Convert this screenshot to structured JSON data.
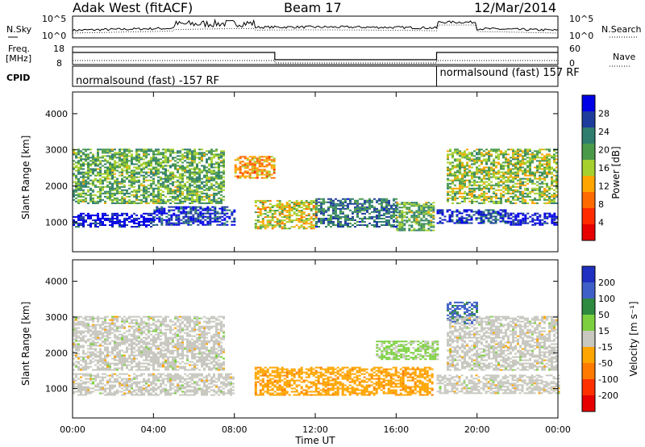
{
  "header": {
    "title": "Adak West (fitACF)",
    "beam": "Beam 17",
    "date": "12/Mar/2014"
  },
  "status_panels": {
    "nsky_label": "N.Sky",
    "nsearch_label": "N.Search",
    "noise_ticks": [
      "10^5",
      "10^0"
    ],
    "freq_label_1": "Freq.",
    "freq_label_2": "[MHz]",
    "freq_ticks": [
      18,
      8
    ],
    "nave_label": "Nave",
    "nave_ticks": [
      60,
      0
    ],
    "cpid_label": "CPID",
    "cpid_left": "normalsound (fast) -157 RF",
    "cpid_right": "normalsound (fast) 157 RF",
    "mode_switch_time_h": 18.0,
    "freq_high_until_h": 10.0
  },
  "axes": {
    "xlabel": "Time UT",
    "xticks": [
      "00:00",
      "04:00",
      "08:00",
      "12:00",
      "16:00",
      "20:00",
      "00:00"
    ],
    "ylabel": "Slant Range [km]",
    "yticks": [
      1000,
      2000,
      3000,
      4000
    ],
    "xlim_hours": [
      0,
      24
    ],
    "ylim_km": [
      180,
      4600
    ]
  },
  "chart_data": [
    {
      "type": "heatmap",
      "panel": "power",
      "colorbar_label": "Power [dB]",
      "colorbar_ticks": [
        4,
        8,
        12,
        16,
        20,
        24,
        28
      ],
      "color_range": [
        0,
        30
      ],
      "colors": [
        "#0000e6",
        "#1e3c9c",
        "#2e7d6e",
        "#4a9a4a",
        "#a6d02e",
        "#ffa500",
        "#ff6a00",
        "#ff2a00",
        "#e60000"
      ],
      "bands": [
        {
          "t0": 0.0,
          "t1": 4.0,
          "r0": 850,
          "r1": 1250,
          "level": 28
        },
        {
          "t0": 4.0,
          "t1": 8.0,
          "r0": 900,
          "r1": 1400,
          "level": 26
        },
        {
          "t0": 0.0,
          "t1": 7.5,
          "r0": 1500,
          "r1": 3000,
          "level": 18
        },
        {
          "t0": 8.0,
          "t1": 10.0,
          "r0": 2200,
          "r1": 2800,
          "level": 10
        },
        {
          "t0": 9.0,
          "t1": 12.0,
          "r0": 800,
          "r1": 1600,
          "level": 14
        },
        {
          "t0": 12.0,
          "t1": 16.0,
          "r0": 850,
          "r1": 1650,
          "level": 22
        },
        {
          "t0": 16.0,
          "t1": 17.8,
          "r0": 750,
          "r1": 1550,
          "level": 18
        },
        {
          "t0": 18.0,
          "t1": 21.5,
          "r0": 950,
          "r1": 1350,
          "level": 26
        },
        {
          "t0": 18.5,
          "t1": 24.0,
          "r0": 1500,
          "r1": 3000,
          "level": 16
        },
        {
          "t0": 21.5,
          "t1": 24.0,
          "r0": 900,
          "r1": 1250,
          "level": 28
        }
      ]
    },
    {
      "type": "heatmap",
      "panel": "velocity",
      "colorbar_label": "Velocity [m s⁻¹]",
      "colorbar_ticks": [
        200,
        100,
        50,
        15,
        -15,
        -50,
        -100,
        -200
      ],
      "color_range": [
        -250,
        250
      ],
      "colors": [
        "#2030c0",
        "#3f5fc8",
        "#2e8a3e",
        "#7cd040",
        "#c8c8c0",
        "#ffa500",
        "#ff7a00",
        "#ff3000",
        "#e60000"
      ],
      "bands": [
        {
          "t0": 0.0,
          "t1": 8.0,
          "r0": 800,
          "r1": 1400,
          "level": 0
        },
        {
          "t0": 0.0,
          "t1": 7.5,
          "r0": 1500,
          "r1": 3000,
          "level": 0
        },
        {
          "t0": 9.0,
          "t1": 17.8,
          "r0": 800,
          "r1": 1600,
          "level": -60
        },
        {
          "t0": 15.0,
          "t1": 18.0,
          "r0": 1800,
          "r1": 2300,
          "level": 40
        },
        {
          "t0": 18.5,
          "t1": 20.0,
          "r0": 2800,
          "r1": 3400,
          "level": 150
        },
        {
          "t0": 18.0,
          "t1": 24.0,
          "r0": 850,
          "r1": 1350,
          "level": 0
        },
        {
          "t0": 18.5,
          "t1": 24.0,
          "r0": 1500,
          "r1": 3000,
          "level": 0
        }
      ]
    }
  ]
}
